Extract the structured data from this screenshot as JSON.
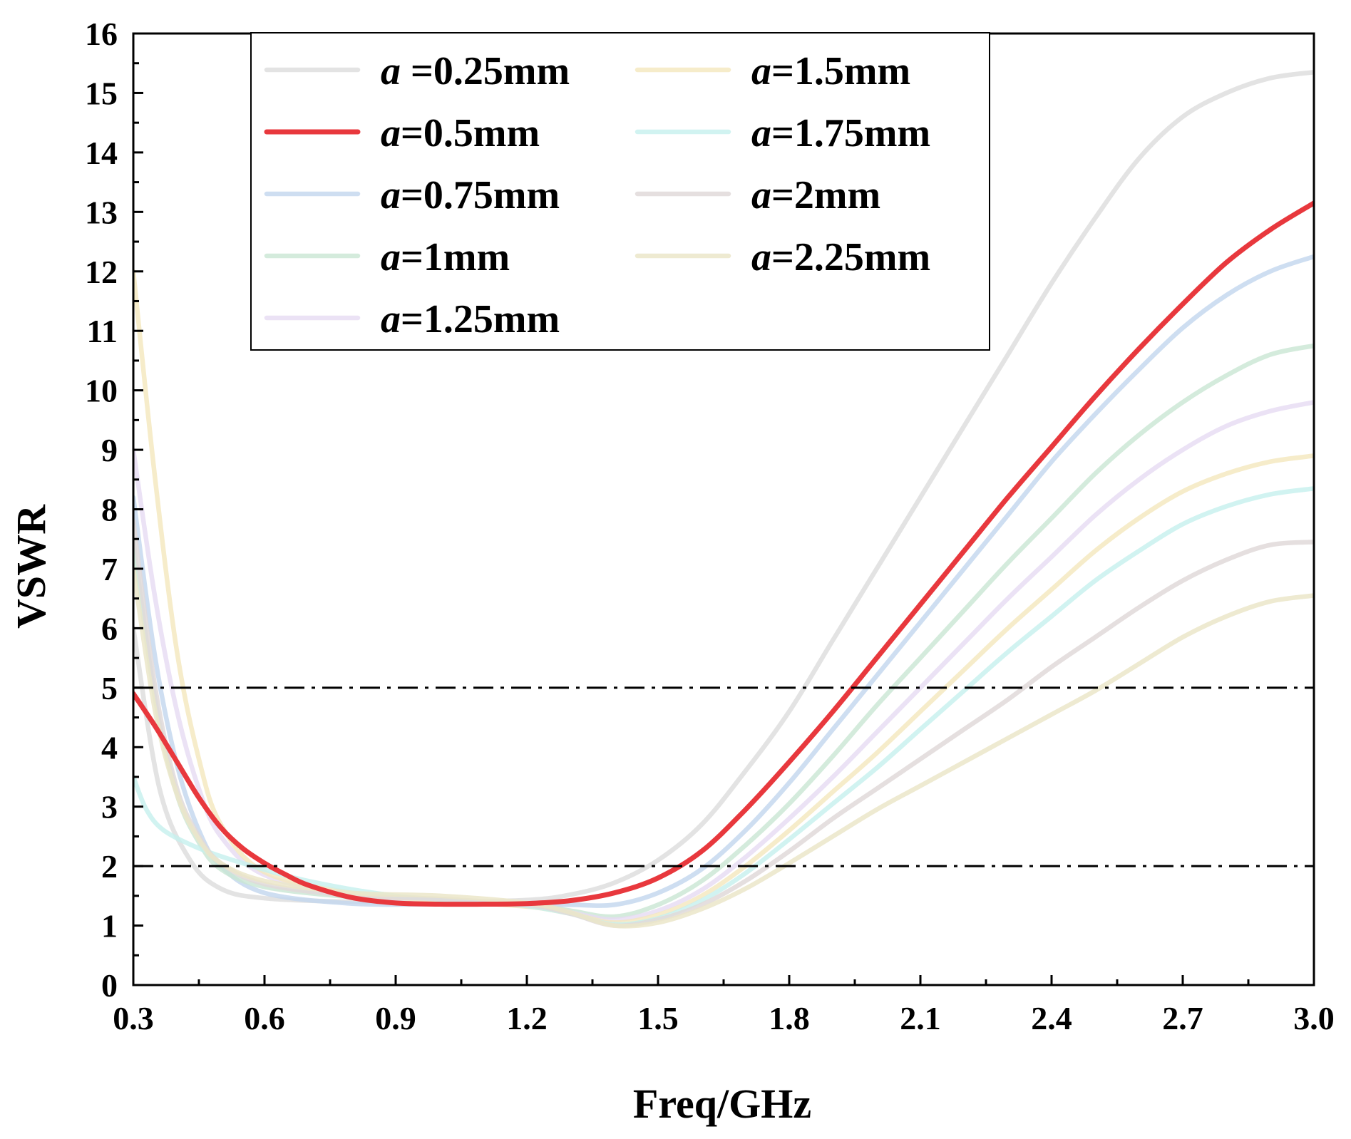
{
  "chart_data": {
    "type": "line",
    "xlabel": "Freq/GHz",
    "ylabel": "VSWR",
    "xlim": [
      0.3,
      3.0
    ],
    "ylim": [
      0,
      16
    ],
    "xticks": [
      "0.3",
      "0.6",
      "0.9",
      "1.2",
      "1.5",
      "1.8",
      "2.1",
      "2.4",
      "2.7",
      "3.0"
    ],
    "yticks": [
      "0",
      "1",
      "2",
      "3",
      "4",
      "5",
      "6",
      "7",
      "8",
      "9",
      "10",
      "11",
      "12",
      "13",
      "14",
      "15",
      "16"
    ],
    "reference_lines": [
      2,
      5
    ],
    "legend_position": "top-center",
    "series": [
      {
        "name": "a =0.25mm",
        "prefix": "a",
        "suffix": " =0.25mm",
        "color": "#d9d9d9",
        "opacity": 0.75,
        "points": [
          [
            0.3,
            6.0
          ],
          [
            0.36,
            3.3
          ],
          [
            0.43,
            2.1
          ],
          [
            0.5,
            1.62
          ],
          [
            0.6,
            1.46
          ],
          [
            0.8,
            1.4
          ],
          [
            1.0,
            1.4
          ],
          [
            1.2,
            1.43
          ],
          [
            1.3,
            1.52
          ],
          [
            1.4,
            1.72
          ],
          [
            1.5,
            2.1
          ],
          [
            1.6,
            2.7
          ],
          [
            1.7,
            3.6
          ],
          [
            1.8,
            4.6
          ],
          [
            1.9,
            5.8
          ],
          [
            2.0,
            7.0
          ],
          [
            2.1,
            8.2
          ],
          [
            2.2,
            9.4
          ],
          [
            2.3,
            10.6
          ],
          [
            2.4,
            11.8
          ],
          [
            2.5,
            12.9
          ],
          [
            2.6,
            13.9
          ],
          [
            2.7,
            14.6
          ],
          [
            2.8,
            15.0
          ],
          [
            2.9,
            15.25
          ],
          [
            3.0,
            15.35
          ]
        ]
      },
      {
        "name": "a=0.5mm",
        "prefix": "a",
        "suffix": "=0.5mm",
        "color": "#e8383d",
        "opacity": 1.0,
        "points": [
          [
            0.3,
            4.9
          ],
          [
            0.35,
            4.35
          ],
          [
            0.4,
            3.75
          ],
          [
            0.45,
            3.15
          ],
          [
            0.5,
            2.65
          ],
          [
            0.55,
            2.3
          ],
          [
            0.6,
            2.05
          ],
          [
            0.65,
            1.85
          ],
          [
            0.7,
            1.68
          ],
          [
            0.8,
            1.47
          ],
          [
            0.9,
            1.38
          ],
          [
            1.0,
            1.36
          ],
          [
            1.1,
            1.36
          ],
          [
            1.2,
            1.37
          ],
          [
            1.3,
            1.42
          ],
          [
            1.4,
            1.55
          ],
          [
            1.5,
            1.8
          ],
          [
            1.6,
            2.25
          ],
          [
            1.7,
            2.95
          ],
          [
            1.8,
            3.75
          ],
          [
            1.9,
            4.6
          ],
          [
            2.0,
            5.5
          ],
          [
            2.1,
            6.4
          ],
          [
            2.2,
            7.3
          ],
          [
            2.3,
            8.2
          ],
          [
            2.4,
            9.05
          ],
          [
            2.5,
            9.9
          ],
          [
            2.6,
            10.7
          ],
          [
            2.7,
            11.45
          ],
          [
            2.8,
            12.15
          ],
          [
            2.9,
            12.7
          ],
          [
            3.0,
            13.15
          ]
        ]
      },
      {
        "name": "a=0.75mm",
        "prefix": "a",
        "suffix": "=0.75mm",
        "color": "#c2d6ee",
        "opacity": 0.8,
        "points": [
          [
            0.3,
            8.2
          ],
          [
            0.35,
            5.5
          ],
          [
            0.4,
            3.7
          ],
          [
            0.45,
            2.6
          ],
          [
            0.5,
            2.0
          ],
          [
            0.6,
            1.55
          ],
          [
            0.8,
            1.37
          ],
          [
            1.0,
            1.36
          ],
          [
            1.2,
            1.36
          ],
          [
            1.3,
            1.35
          ],
          [
            1.4,
            1.35
          ],
          [
            1.5,
            1.55
          ],
          [
            1.6,
            1.95
          ],
          [
            1.7,
            2.6
          ],
          [
            1.8,
            3.4
          ],
          [
            1.9,
            4.3
          ],
          [
            2.0,
            5.2
          ],
          [
            2.1,
            6.1
          ],
          [
            2.2,
            7.0
          ],
          [
            2.3,
            7.9
          ],
          [
            2.4,
            8.8
          ],
          [
            2.5,
            9.6
          ],
          [
            2.6,
            10.35
          ],
          [
            2.7,
            11.05
          ],
          [
            2.8,
            11.6
          ],
          [
            2.9,
            12.0
          ],
          [
            3.0,
            12.25
          ]
        ]
      },
      {
        "name": "a=1mm",
        "prefix": "a",
        "suffix": "=1mm",
        "color": "#c9e6d3",
        "opacity": 0.8,
        "points": [
          [
            0.3,
            7.5
          ],
          [
            0.35,
            4.8
          ],
          [
            0.4,
            3.2
          ],
          [
            0.45,
            2.4
          ],
          [
            0.5,
            1.95
          ],
          [
            0.6,
            1.65
          ],
          [
            0.8,
            1.48
          ],
          [
            1.0,
            1.42
          ],
          [
            1.2,
            1.35
          ],
          [
            1.3,
            1.25
          ],
          [
            1.4,
            1.15
          ],
          [
            1.5,
            1.35
          ],
          [
            1.6,
            1.75
          ],
          [
            1.7,
            2.35
          ],
          [
            1.8,
            3.05
          ],
          [
            1.9,
            3.85
          ],
          [
            2.0,
            4.7
          ],
          [
            2.1,
            5.5
          ],
          [
            2.2,
            6.3
          ],
          [
            2.3,
            7.1
          ],
          [
            2.4,
            7.85
          ],
          [
            2.5,
            8.6
          ],
          [
            2.6,
            9.25
          ],
          [
            2.7,
            9.8
          ],
          [
            2.8,
            10.25
          ],
          [
            2.9,
            10.6
          ],
          [
            3.0,
            10.75
          ]
        ]
      },
      {
        "name": "a=1.25mm",
        "prefix": "a",
        "suffix": "=1.25mm",
        "color": "#e6dbf2",
        "opacity": 0.8,
        "points": [
          [
            0.3,
            9.0
          ],
          [
            0.35,
            6.5
          ],
          [
            0.4,
            4.6
          ],
          [
            0.45,
            3.3
          ],
          [
            0.5,
            2.5
          ],
          [
            0.6,
            1.85
          ],
          [
            0.8,
            1.5
          ],
          [
            1.0,
            1.4
          ],
          [
            1.2,
            1.33
          ],
          [
            1.3,
            1.22
          ],
          [
            1.4,
            1.1
          ],
          [
            1.5,
            1.25
          ],
          [
            1.6,
            1.6
          ],
          [
            1.7,
            2.15
          ],
          [
            1.8,
            2.8
          ],
          [
            1.9,
            3.5
          ],
          [
            2.0,
            4.25
          ],
          [
            2.1,
            5.0
          ],
          [
            2.2,
            5.75
          ],
          [
            2.3,
            6.5
          ],
          [
            2.4,
            7.2
          ],
          [
            2.5,
            7.9
          ],
          [
            2.6,
            8.5
          ],
          [
            2.7,
            9.0
          ],
          [
            2.8,
            9.4
          ],
          [
            2.9,
            9.65
          ],
          [
            3.0,
            9.8
          ]
        ]
      },
      {
        "name": "a=1.5mm",
        "prefix": "a",
        "suffix": "=1.5mm",
        "color": "#f4e7bd",
        "opacity": 0.8,
        "points": [
          [
            0.3,
            12.0
          ],
          [
            0.35,
            8.5
          ],
          [
            0.4,
            5.6
          ],
          [
            0.45,
            3.8
          ],
          [
            0.5,
            2.7
          ],
          [
            0.6,
            1.9
          ],
          [
            0.8,
            1.55
          ],
          [
            1.0,
            1.42
          ],
          [
            1.2,
            1.32
          ],
          [
            1.3,
            1.2
          ],
          [
            1.4,
            1.05
          ],
          [
            1.5,
            1.18
          ],
          [
            1.6,
            1.5
          ],
          [
            1.7,
            2.0
          ],
          [
            1.8,
            2.6
          ],
          [
            1.9,
            3.25
          ],
          [
            2.0,
            3.9
          ],
          [
            2.1,
            4.6
          ],
          [
            2.2,
            5.3
          ],
          [
            2.3,
            6.0
          ],
          [
            2.4,
            6.65
          ],
          [
            2.5,
            7.3
          ],
          [
            2.6,
            7.85
          ],
          [
            2.7,
            8.3
          ],
          [
            2.8,
            8.6
          ],
          [
            2.9,
            8.8
          ],
          [
            3.0,
            8.9
          ]
        ]
      },
      {
        "name": "a=1.75mm",
        "prefix": "a",
        "suffix": "=1.75mm",
        "color": "#c6f0ee",
        "opacity": 0.8,
        "points": [
          [
            0.3,
            3.5
          ],
          [
            0.33,
            2.95
          ],
          [
            0.37,
            2.6
          ],
          [
            0.45,
            2.3
          ],
          [
            0.55,
            2.05
          ],
          [
            0.7,
            1.75
          ],
          [
            0.9,
            1.5
          ],
          [
            1.1,
            1.4
          ],
          [
            1.2,
            1.33
          ],
          [
            1.3,
            1.2
          ],
          [
            1.4,
            1.02
          ],
          [
            1.5,
            1.12
          ],
          [
            1.6,
            1.42
          ],
          [
            1.7,
            1.88
          ],
          [
            1.8,
            2.45
          ],
          [
            1.9,
            3.05
          ],
          [
            2.0,
            3.65
          ],
          [
            2.1,
            4.3
          ],
          [
            2.2,
            4.95
          ],
          [
            2.3,
            5.6
          ],
          [
            2.4,
            6.2
          ],
          [
            2.5,
            6.8
          ],
          [
            2.6,
            7.3
          ],
          [
            2.7,
            7.75
          ],
          [
            2.8,
            8.05
          ],
          [
            2.9,
            8.25
          ],
          [
            3.0,
            8.35
          ]
        ]
      },
      {
        "name": "a=2mm",
        "prefix": "a",
        "suffix": "=2mm",
        "color": "#e0d9d9",
        "opacity": 0.85,
        "points": [
          [
            0.3,
            7.8
          ],
          [
            0.35,
            5.0
          ],
          [
            0.4,
            3.3
          ],
          [
            0.45,
            2.5
          ],
          [
            0.5,
            2.05
          ],
          [
            0.6,
            1.7
          ],
          [
            0.8,
            1.5
          ],
          [
            1.0,
            1.45
          ],
          [
            1.2,
            1.35
          ],
          [
            1.3,
            1.2
          ],
          [
            1.4,
            1.0
          ],
          [
            1.5,
            1.1
          ],
          [
            1.6,
            1.35
          ],
          [
            1.7,
            1.75
          ],
          [
            1.8,
            2.25
          ],
          [
            1.9,
            2.8
          ],
          [
            2.0,
            3.3
          ],
          [
            2.1,
            3.8
          ],
          [
            2.2,
            4.3
          ],
          [
            2.3,
            4.8
          ],
          [
            2.4,
            5.35
          ],
          [
            2.5,
            5.85
          ],
          [
            2.6,
            6.35
          ],
          [
            2.7,
            6.8
          ],
          [
            2.8,
            7.15
          ],
          [
            2.9,
            7.4
          ],
          [
            3.0,
            7.45
          ]
        ]
      },
      {
        "name": "a=2.25mm",
        "prefix": "a",
        "suffix": "=2.25mm",
        "color": "#ebe6c9",
        "opacity": 0.85,
        "points": [
          [
            0.3,
            7.0
          ],
          [
            0.35,
            4.6
          ],
          [
            0.4,
            3.2
          ],
          [
            0.45,
            2.45
          ],
          [
            0.5,
            2.05
          ],
          [
            0.6,
            1.75
          ],
          [
            0.8,
            1.55
          ],
          [
            1.0,
            1.5
          ],
          [
            1.2,
            1.38
          ],
          [
            1.3,
            1.22
          ],
          [
            1.4,
            1.0
          ],
          [
            1.5,
            1.05
          ],
          [
            1.6,
            1.28
          ],
          [
            1.7,
            1.62
          ],
          [
            1.8,
            2.05
          ],
          [
            1.9,
            2.5
          ],
          [
            2.0,
            2.95
          ],
          [
            2.1,
            3.35
          ],
          [
            2.2,
            3.75
          ],
          [
            2.3,
            4.15
          ],
          [
            2.4,
            4.55
          ],
          [
            2.5,
            4.95
          ],
          [
            2.6,
            5.4
          ],
          [
            2.7,
            5.85
          ],
          [
            2.8,
            6.2
          ],
          [
            2.9,
            6.45
          ],
          [
            3.0,
            6.55
          ]
        ]
      }
    ]
  }
}
